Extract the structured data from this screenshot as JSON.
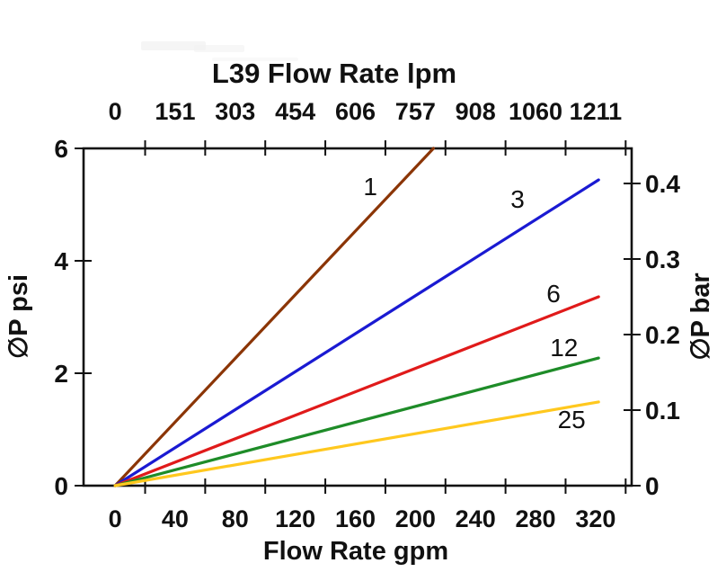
{
  "figure": {
    "background": "#ffffff",
    "axis_color": "#111111",
    "text_color": "#111111",
    "series_label_color": "#222222"
  },
  "chart_data": {
    "type": "line",
    "title": "L39 Flow Rate lpm",
    "xlabel": "Flow Rate gpm",
    "ylabel_left": "∅P psi",
    "ylabel_right": "∅P bar",
    "xlim": [
      -21,
      344
    ],
    "ylim": [
      0,
      6
    ],
    "grid": false,
    "legend_position": "inline-labels",
    "top_axis": {
      "unit": "lpm",
      "tick_labels": [
        0,
        151,
        303,
        454,
        606,
        757,
        908,
        1060,
        1211
      ]
    },
    "bottom_axis": {
      "unit": "gpm",
      "tick_labels": [
        0,
        40,
        80,
        120,
        160,
        200,
        240,
        280,
        320
      ],
      "tick_mark_values": [
        20,
        60,
        100,
        140,
        180,
        220,
        260,
        300,
        340
      ]
    },
    "left_axis": {
      "unit": "psi",
      "tick_labels": [
        0,
        2,
        4,
        6
      ]
    },
    "right_axis": {
      "unit": "bar",
      "tick_labels": [
        0,
        0.1,
        0.2,
        0.3,
        0.4
      ],
      "bar_to_psi": 13.44
    },
    "series": [
      {
        "name": "1",
        "color": "#8B3506",
        "points": [
          [
            0,
            0
          ],
          [
            212,
            6.0
          ]
        ],
        "label_x": 170,
        "label_y": 5.31
      },
      {
        "name": "3",
        "color": "#1A1AD2",
        "points": [
          [
            0,
            0
          ],
          [
            322,
            5.44
          ]
        ],
        "label_x": 268,
        "label_y": 5.09
      },
      {
        "name": "6",
        "color": "#E01A1A",
        "points": [
          [
            0,
            0
          ],
          [
            322,
            3.36
          ]
        ],
        "label_x": 292,
        "label_y": 3.41
      },
      {
        "name": "12",
        "color": "#1E8C28",
        "points": [
          [
            0,
            0
          ],
          [
            322,
            2.27
          ]
        ],
        "label_x": 299,
        "label_y": 2.45
      },
      {
        "name": "25",
        "color": "#FFC81E",
        "points": [
          [
            0,
            0
          ],
          [
            322,
            1.49
          ]
        ],
        "label_x": 304,
        "label_y": 1.17
      }
    ]
  }
}
